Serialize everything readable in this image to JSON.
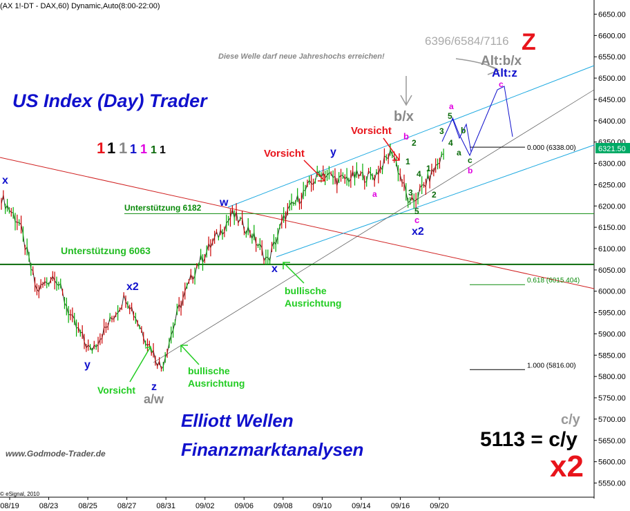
{
  "header": {
    "symbol_line": "(AX 1!-DT - DAX,60) Dynamic,Auto(8:00-22:00)"
  },
  "titles": {
    "main": "US Index (Day) Trader",
    "elliott": "Elliott Wellen",
    "finanz": "Finanzmarktanalysen",
    "site": "www.Godmode-Trader.de",
    "copyright": "© eSignal, 2010",
    "note": "Diese Welle darf neue Jahreshochs  erreichen!",
    "targets": "6396/6584/7116",
    "big_z": "Z",
    "cy": "c/y",
    "equation": "5113 = c/y",
    "x2": "x2"
  },
  "colors": {
    "red": "#e8141b",
    "blue": "#1010cc",
    "green": "#0a8a0a",
    "magenta": "#e000e0",
    "gray": "#888888",
    "cyan": "#1aa8e0",
    "price_up": "#00aa00",
    "price_down": "#cc0000"
  },
  "count_digits": [
    {
      "text": "1",
      "color": "#e8141b"
    },
    {
      "text": "1",
      "color": "#000000"
    },
    {
      "text": "1",
      "color": "#888888"
    },
    {
      "text": "1",
      "color": "#1010cc"
    },
    {
      "text": "1",
      "color": "#e000e0"
    },
    {
      "text": "1",
      "color": "#0a6a0a"
    },
    {
      "text": "1",
      "color": "#000000"
    }
  ],
  "chart_data": {
    "type": "line",
    "title": "US Index (Day) Trader",
    "y_axis": {
      "side": "right",
      "range": [
        5520,
        6680
      ],
      "ticks": [
        "6650.00",
        "6600.00",
        "6550.00",
        "6500.00",
        "6450.00",
        "6400.00",
        "6350.00",
        "6300.00",
        "6250.00",
        "6200.00",
        "6150.00",
        "6100.00",
        "6050.00",
        "6000.00",
        "5950.00",
        "5900.00",
        "5850.00",
        "5800.00",
        "5750.00",
        "5700.00",
        "5650.00",
        "5600.00",
        "5550.00"
      ]
    },
    "x_axis": {
      "ticks": [
        "08/19",
        "08/23",
        "08/25",
        "08/27",
        "08/31",
        "09/02",
        "09/06",
        "09/08",
        "09/10",
        "09/14",
        "09/16",
        "09/20"
      ]
    },
    "last_price": "6321.50",
    "price_path": [
      [
        "08/19",
        6220
      ],
      [
        "08/19",
        6160
      ],
      [
        "08/23",
        6000
      ],
      [
        "08/23",
        6040
      ],
      [
        "08/25",
        5930
      ],
      [
        "08/25",
        5860
      ],
      [
        "08/25",
        5920
      ],
      [
        "08/27",
        5990
      ],
      [
        "08/27",
        5900
      ],
      [
        "08/31",
        5820
      ],
      [
        "08/31",
        5960
      ],
      [
        "09/02",
        6060
      ],
      [
        "09/02",
        6120
      ],
      [
        "09/06",
        6180
      ],
      [
        "09/06",
        6140
      ],
      [
        "09/08",
        6070
      ],
      [
        "09/08",
        6180
      ],
      [
        "09/10",
        6230
      ],
      [
        "09/10",
        6280
      ],
      [
        "09/14",
        6260
      ],
      [
        "09/14",
        6270
      ],
      [
        "09/16",
        6270
      ],
      [
        "09/16",
        6330
      ],
      [
        "09/16",
        6200
      ],
      [
        "09/20",
        6260
      ],
      [
        "09/20",
        6330
      ]
    ],
    "projection_path": [
      [
        6330
      ],
      [
        6380
      ],
      [
        6330
      ],
      [
        6340
      ],
      [
        6300
      ],
      [
        6460
      ],
      [
        6340
      ]
    ],
    "horizontal_levels": [
      {
        "label": "Unterstützung 6182",
        "value": 6182,
        "color": "#0a8a0a"
      },
      {
        "label": "Unterstützung 6063",
        "value": 6063,
        "color": "#0a8a0a"
      }
    ],
    "fib_levels": [
      {
        "label": "0.000 (6338.00)",
        "value": 6338,
        "color": "#000000"
      },
      {
        "label": "0.618 (6015.404)",
        "value": 6015.404,
        "color": "#0a8a0a"
      },
      {
        "label": "1.000 (5816.00)",
        "value": 5816,
        "color": "#000000"
      }
    ],
    "annotations": {
      "wave_labels": [
        {
          "text": "x",
          "color": "#1010cc"
        },
        {
          "text": "x2",
          "color": "#1010cc"
        },
        {
          "text": "y",
          "color": "#1010cc"
        },
        {
          "text": "z",
          "color": "#1010cc"
        },
        {
          "text": "a/w",
          "color": "#888888"
        },
        {
          "text": "w",
          "color": "#1010cc"
        },
        {
          "text": "x",
          "color": "#1010cc"
        },
        {
          "text": "y",
          "color": "#1010cc"
        },
        {
          "text": "a",
          "color": "#e000e0"
        },
        {
          "text": "b/x",
          "color": "#888888"
        },
        {
          "text": "b",
          "color": "#e000e0"
        },
        {
          "text": "c",
          "color": "#e000e0"
        },
        {
          "text": "x2",
          "color": "#1010cc"
        },
        {
          "text": "1",
          "color": "#0a6a0a"
        },
        {
          "text": "2",
          "color": "#0a6a0a"
        },
        {
          "text": "3",
          "color": "#0a6a0a"
        },
        {
          "text": "4",
          "color": "#0a6a0a"
        },
        {
          "text": "5",
          "color": "#0a6a0a"
        },
        {
          "text": "1",
          "color": "#0a6a0a"
        },
        {
          "text": "2",
          "color": "#0a6a0a"
        },
        {
          "text": "3",
          "color": "#0a6a0a"
        },
        {
          "text": "4",
          "color": "#0a6a0a"
        },
        {
          "text": "5",
          "color": "#0a6a0a"
        },
        {
          "text": "a",
          "color": "#0a6a0a"
        },
        {
          "text": "b",
          "color": "#0a6a0a"
        },
        {
          "text": "c",
          "color": "#0a6a0a"
        },
        {
          "text": "a",
          "color": "#e000e0"
        },
        {
          "text": "b",
          "color": "#e000e0"
        },
        {
          "text": "c",
          "color": "#e000e0"
        },
        {
          "text": "Alt:b/x",
          "color": "#888888"
        },
        {
          "text": "Alt:z",
          "color": "#1010cc"
        }
      ],
      "callouts": [
        {
          "text": "Vorsicht",
          "color": "#e8141b"
        },
        {
          "text": "Vorsicht",
          "color": "#e8141b"
        },
        {
          "text": "Vorsicht",
          "color": "#22cc22"
        },
        {
          "text": "bullische Ausrichtung",
          "color": "#22cc22"
        },
        {
          "text": "bullische Ausrichtung",
          "color": "#22cc22"
        }
      ]
    }
  }
}
